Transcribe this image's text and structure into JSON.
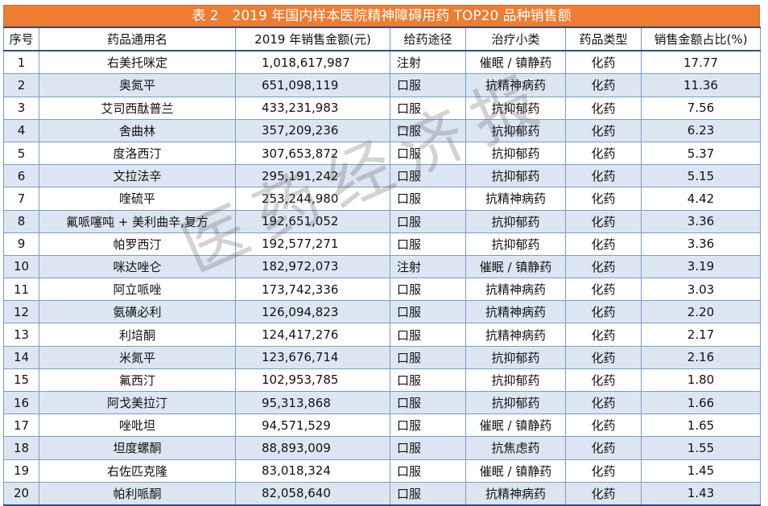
{
  "title": "表 2　2019 年国内样本医院精神障碍用药 TOP20 品种销售额",
  "headers": [
    "序号",
    "药品通用名",
    "2019 年销售金额(元)",
    "给药途径",
    "治疗小类",
    "药品类型",
    "销售金额占比(%)"
  ],
  "rows": [
    {
      "no": "1",
      "name": "右美托咪定",
      "sales": "1,018,617,987",
      "route": "注射",
      "class": "催眠 / 镇静药",
      "type": "化药",
      "pct": "17.77"
    },
    {
      "no": "2",
      "name": "奥氮平",
      "sales": "651,098,119",
      "route": "口服",
      "class": "抗精神病药",
      "type": "化药",
      "pct": "11.36"
    },
    {
      "no": "3",
      "name": "艾司西酞普兰",
      "sales": "433,231,983",
      "route": "口服",
      "class": "抗抑郁药",
      "type": "化药",
      "pct": "7.56"
    },
    {
      "no": "4",
      "name": "舍曲林",
      "sales": "357,209,236",
      "route": "口服",
      "class": "抗抑郁药",
      "type": "化药",
      "pct": "6.23"
    },
    {
      "no": "5",
      "name": "度洛西汀",
      "sales": "307,653,872",
      "route": "口服",
      "class": "抗抑郁药",
      "type": "化药",
      "pct": "5.37"
    },
    {
      "no": "6",
      "name": "文拉法辛",
      "sales": "295,191,242",
      "route": "口服",
      "class": "抗抑郁药",
      "type": "化药",
      "pct": "5.15"
    },
    {
      "no": "7",
      "name": "喹硫平",
      "sales": "253,244,980",
      "route": "口服",
      "class": "抗精神病药",
      "type": "化药",
      "pct": "4.42"
    },
    {
      "no": "8",
      "name": "氟哌噻吨 + 美利曲辛,复方",
      "sales": "192,651,052",
      "route": "口服",
      "class": "抗抑郁药",
      "type": "化药",
      "pct": "3.36"
    },
    {
      "no": "9",
      "name": "帕罗西汀",
      "sales": "192,577,271",
      "route": "口服",
      "class": "抗抑郁药",
      "type": "化药",
      "pct": "3.36"
    },
    {
      "no": "10",
      "name": "咪达唑仑",
      "sales": "182,972,073",
      "route": "注射",
      "class": "催眠 / 镇静药",
      "type": "化药",
      "pct": "3.19"
    },
    {
      "no": "11",
      "name": "阿立哌唑",
      "sales": "173,742,336",
      "route": "口服",
      "class": "抗精神病药",
      "type": "化药",
      "pct": "3.03"
    },
    {
      "no": "12",
      "name": "氨磺必利",
      "sales": "126,094,823",
      "route": "口服",
      "class": "抗精神病药",
      "type": "化药",
      "pct": "2.20"
    },
    {
      "no": "13",
      "name": "利培酮",
      "sales": "124,417,276",
      "route": "口服",
      "class": "抗精神病药",
      "type": "化药",
      "pct": "2.17"
    },
    {
      "no": "14",
      "name": "米氮平",
      "sales": "123,676,714",
      "route": "口服",
      "class": "抗抑郁药",
      "type": "化药",
      "pct": "2.16"
    },
    {
      "no": "15",
      "name": "氟西汀",
      "sales": "102,953,785",
      "route": "口服",
      "class": "抗抑郁药",
      "type": "化药",
      "pct": "1.80"
    },
    {
      "no": "16",
      "name": "阿戈美拉汀",
      "sales": "95,313,868",
      "route": "口服",
      "class": "抗抑郁药",
      "type": "化药",
      "pct": "1.66"
    },
    {
      "no": "17",
      "name": "唑吡坦",
      "sales": "94,571,529",
      "route": "口服",
      "class": "催眠 / 镇静药",
      "type": "化药",
      "pct": "1.65"
    },
    {
      "no": "18",
      "name": "坦度螺酮",
      "sales": "88,893,009",
      "route": "口服",
      "class": "抗焦虑药",
      "type": "化药",
      "pct": "1.55"
    },
    {
      "no": "19",
      "name": "右佐匹克隆",
      "sales": "83,018,324",
      "route": "口服",
      "class": "催眠 / 镇静药",
      "type": "化药",
      "pct": "1.45"
    },
    {
      "no": "20",
      "name": "帕利哌酮",
      "sales": "82,058,640",
      "route": "口服",
      "class": "抗精神病药",
      "type": "化药",
      "pct": "1.43"
    }
  ],
  "watermark": "医药经济报",
  "colors": {
    "title_bg": "#ed7d31",
    "alt_row": "#dce6f2",
    "border": "#7a9cc7",
    "rule": "#2f4f8a"
  }
}
